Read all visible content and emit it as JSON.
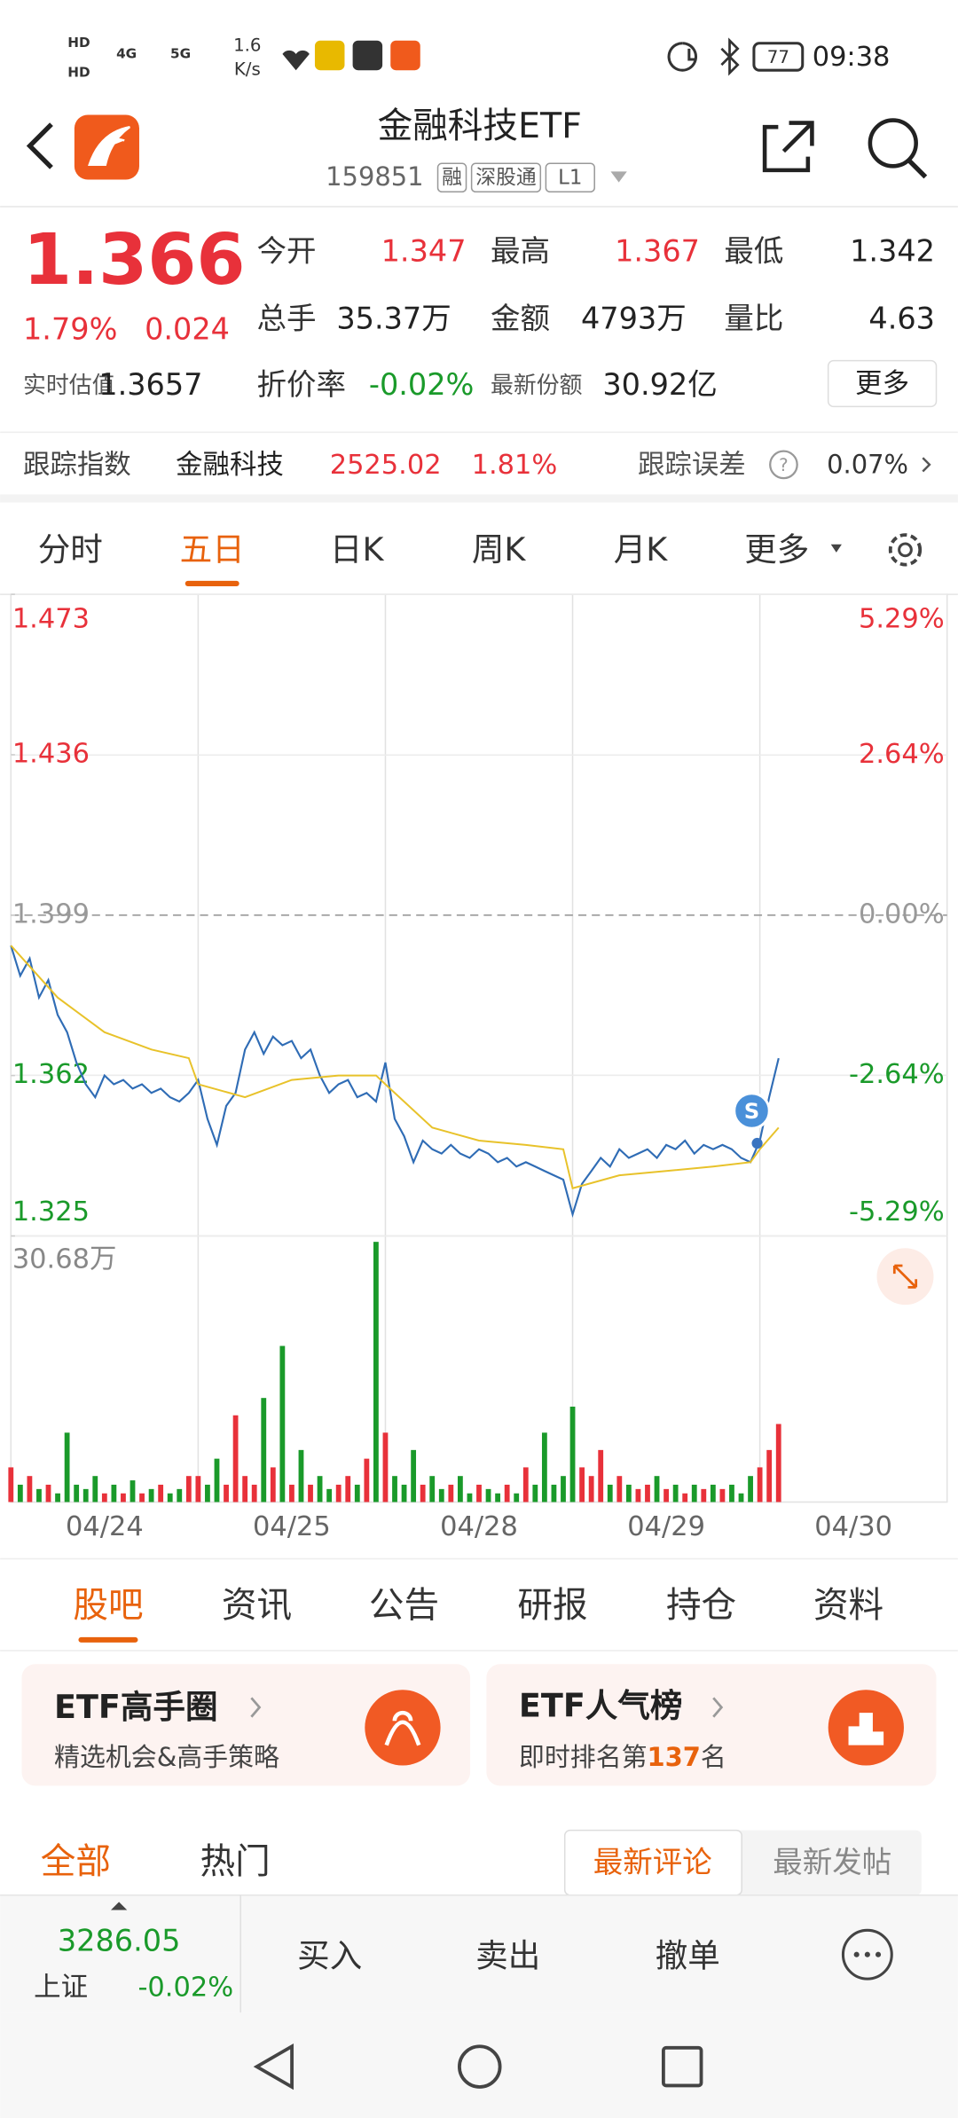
{
  "status_bar": {
    "network": [
      "HD",
      "HD",
      "4G",
      "5G"
    ],
    "speed": "1.6",
    "speed_unit": "K/s",
    "battery": "77",
    "time": "09:38"
  },
  "header": {
    "title": "金融科技ETF",
    "code": "159851",
    "badges": [
      "融",
      "深股通",
      "L1"
    ]
  },
  "quote": {
    "price": "1.366",
    "change_pct": "1.79%",
    "change": "0.024",
    "fields": [
      {
        "label": "今开",
        "value": "1.347"
      },
      {
        "label": "最高",
        "value": "1.367"
      },
      {
        "label": "最低",
        "value": "1.342"
      },
      {
        "label": "总手",
        "value": "35.37万"
      },
      {
        "label": "金额",
        "value": "4793万"
      },
      {
        "label": "量比",
        "value": "4.63"
      },
      {
        "label": "实时估值",
        "value": "1.3657"
      },
      {
        "label": "折价率",
        "value": "-0.02%"
      },
      {
        "label": "最新份额",
        "value": "30.92亿"
      }
    ],
    "more_button": "更多"
  },
  "tracking": {
    "label": "跟踪指数",
    "index": "金融科技",
    "value": "2525.02",
    "pct": "1.81%",
    "error_label": "跟踪误差",
    "error": "0.07%"
  },
  "chart_tabs": {
    "items": [
      "分时",
      "五日",
      "日K",
      "周K",
      "月K",
      "更多"
    ],
    "active": 1
  },
  "chart": {
    "type": "line",
    "xlim": [
      0,
      100
    ],
    "ylim": [
      1.325,
      1.473
    ],
    "yticks": [
      1.325,
      1.362,
      1.399,
      1.436,
      1.473
    ],
    "y2lim": [
      -5.29,
      5.29
    ],
    "y2ticks": [
      {
        "value": -5.29,
        "label": "-5.29%"
      },
      {
        "value": -2.64,
        "label": "-2.64%"
      },
      {
        "value": 0,
        "label": "0.00%"
      },
      {
        "value": 2.64,
        "label": "2.64%"
      },
      {
        "value": 5.29,
        "label": "5.29%"
      }
    ],
    "categories": [
      "04/24",
      "04/25",
      "04/28",
      "04/29",
      "04/30"
    ],
    "marker": "S",
    "series": [
      {
        "color": "#2f6cb5",
        "values": [
          1.392,
          1.385,
          1.389,
          1.38,
          1.384,
          1.376,
          1.372,
          1.365,
          1.36,
          1.357,
          1.362,
          1.36,
          1.361,
          1.359,
          1.36,
          1.358,
          1.359,
          1.357,
          1.356,
          1.358,
          1.361,
          1.352,
          1.346,
          1.355,
          1.358,
          1.368,
          1.372,
          1.367,
          1.371,
          1.369,
          1.37,
          1.366,
          1.368,
          1.362,
          1.358,
          1.36,
          1.361,
          1.357,
          1.358,
          1.356,
          1.365,
          1.352,
          1.348,
          1.342,
          1.347,
          1.345,
          1.344,
          1.346,
          1.344,
          1.343,
          1.345,
          1.344,
          1.342,
          1.343,
          1.341,
          1.342,
          1.341,
          1.34,
          1.339,
          1.338,
          1.33,
          1.337,
          1.34,
          1.343,
          1.341,
          1.345,
          1.343,
          1.344,
          1.345,
          1.343,
          1.346,
          1.345,
          1.347,
          1.344,
          1.346,
          1.345,
          1.346,
          1.345,
          1.343,
          1.342,
          1.347,
          1.357,
          1.366
        ]
      },
      {
        "color": "#e8c22a",
        "x": [
          0,
          5,
          10,
          15,
          19,
          20,
          25,
          30,
          35,
          39,
          40,
          45,
          50,
          55,
          59,
          60,
          65,
          70,
          75,
          79,
          80,
          82
        ],
        "values": [
          1.392,
          1.38,
          1.372,
          1.368,
          1.366,
          1.36,
          1.357,
          1.361,
          1.362,
          1.362,
          1.36,
          1.35,
          1.347,
          1.346,
          1.345,
          1.336,
          1.339,
          1.34,
          1.341,
          1.342,
          1.345,
          1.35
        ]
      }
    ],
    "volume": {
      "label": "30.68万",
      "ylim": [
        0,
        30.68
      ],
      "up_color": "#e8313a",
      "down_color": "#1a9a2a",
      "values": [
        4,
        2,
        3,
        1.5,
        2,
        1,
        8,
        2,
        1.5,
        3,
        1,
        2,
        1,
        2.5,
        1,
        1.5,
        2,
        1,
        1.5,
        3,
        3,
        2,
        5,
        2,
        10,
        3,
        2,
        12,
        4,
        18,
        2,
        6,
        2,
        3,
        1.5,
        2,
        3,
        2,
        5,
        30,
        8,
        3,
        2,
        6,
        2,
        3,
        1.5,
        2,
        3,
        1,
        2,
        1.5,
        1,
        2,
        1,
        4,
        2,
        8,
        2,
        3,
        11,
        4,
        3,
        6,
        2,
        3,
        2,
        1.5,
        2,
        3,
        1.5,
        2,
        1,
        2,
        1.5,
        2,
        1.5,
        2,
        1,
        3,
        4,
        6,
        9
      ]
    }
  },
  "content_tabs": {
    "items": [
      "股吧",
      "资讯",
      "公告",
      "研报",
      "持仓",
      "资料"
    ],
    "active": 0
  },
  "cards": [
    {
      "title": "ETF高手圈",
      "subtitle": "精选机会&高手策略"
    },
    {
      "title": "ETF人气榜",
      "subtitle_pre": "即时排名第",
      "rank": "137",
      "subtitle_post": "名"
    }
  ],
  "feed_tabs": {
    "items": [
      "全部",
      "热门"
    ],
    "sort": [
      "最新评论",
      "最新发帖"
    ]
  },
  "bottom_bar": {
    "index_value": "3286.05",
    "index_name": "上证",
    "index_pct": "-0.02%",
    "actions": [
      "买入",
      "卖出",
      "撤单"
    ]
  }
}
